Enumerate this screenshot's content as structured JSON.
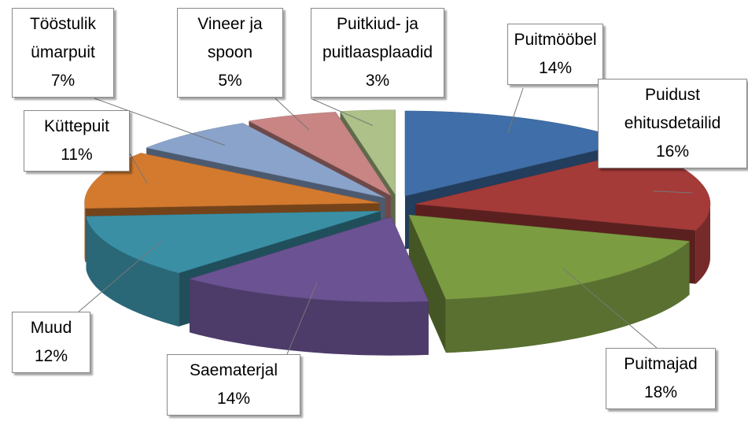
{
  "chart_data": {
    "type": "pie3d",
    "categories": [
      "Puitmööbel",
      "Puidust ehitusdetailid",
      "Puitmajad",
      "Saematerjal",
      "Muud",
      "Küttepuit",
      "Tööstulik ümarpuit",
      "Vineer ja spoon",
      "Puitkiud- ja puitlaasplaadid"
    ],
    "values": [
      14,
      16,
      18,
      14,
      12,
      11,
      7,
      5,
      3
    ],
    "value_labels": [
      "14%",
      "16%",
      "18%",
      "14%",
      "12%",
      "11%",
      "7%",
      "5%",
      "3%"
    ],
    "colors": [
      "#3f6ea8",
      "#a43b39",
      "#7c9c42",
      "#6b5292",
      "#3a8fa5",
      "#d37a2f",
      "#8aa3cb",
      "#c88584",
      "#adc189"
    ],
    "exploded": true
  }
}
